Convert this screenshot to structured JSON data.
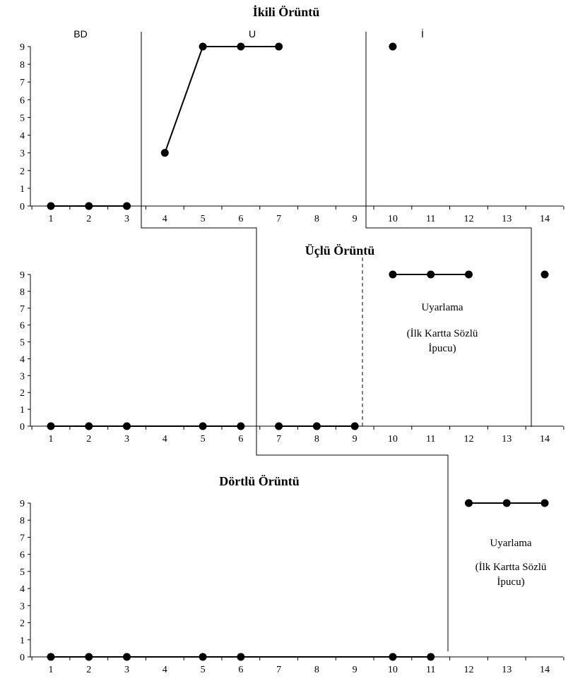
{
  "chart_data": [
    {
      "type": "line",
      "title": "İkili Örüntü",
      "x_ticks": [
        "1",
        "2",
        "3",
        "4",
        "5",
        "6",
        "7",
        "8",
        "9",
        "10",
        "11",
        "12",
        "13",
        "14"
      ],
      "y_ticks": [
        "0",
        "1",
        "2",
        "3",
        "4",
        "5",
        "6",
        "7",
        "8",
        "9"
      ],
      "ylim": [
        0,
        9
      ],
      "xlim": [
        1,
        14
      ],
      "grid": false,
      "phase_labels": [
        "BD",
        "U",
        "İ"
      ],
      "segments": [
        {
          "phase": "BD",
          "points": [
            [
              1,
              0
            ],
            [
              2,
              0
            ],
            [
              3,
              0
            ]
          ]
        },
        {
          "phase": "U",
          "points": [
            [
              4,
              3
            ],
            [
              5,
              9
            ],
            [
              6,
              9
            ],
            [
              7,
              9
            ]
          ]
        },
        {
          "phase": "İ",
          "points": [
            [
              10,
              9
            ]
          ]
        }
      ]
    },
    {
      "type": "line",
      "title": "Üçlü Örüntü",
      "x_ticks": [
        "1",
        "2",
        "3",
        "4",
        "5",
        "6",
        "7",
        "8",
        "9",
        "10",
        "11",
        "12",
        "13",
        "14"
      ],
      "y_ticks": [
        "0",
        "1",
        "2",
        "3",
        "4",
        "5",
        "6",
        "7",
        "8",
        "9"
      ],
      "ylim": [
        0,
        9
      ],
      "xlim": [
        1,
        14
      ],
      "grid": false,
      "annotation": [
        "Uyarlama",
        "(İlk Kartta Sözlü",
        "İpucu)"
      ],
      "segments": [
        {
          "phase": "BD",
          "points": [
            [
              1,
              0
            ],
            [
              2,
              0
            ],
            [
              3,
              0
            ],
            [
              5,
              0
            ],
            [
              6,
              0
            ]
          ]
        },
        {
          "phase": "U",
          "points": [
            [
              7,
              0
            ],
            [
              8,
              0
            ],
            [
              9,
              0
            ]
          ]
        },
        {
          "phase": "Uyarlama",
          "points": [
            [
              10,
              9
            ],
            [
              11,
              9
            ],
            [
              12,
              9
            ]
          ]
        },
        {
          "phase": "İ",
          "points": [
            [
              14,
              9
            ]
          ]
        }
      ]
    },
    {
      "type": "line",
      "title": "Dörtlü Örüntü",
      "x_ticks": [
        "1",
        "2",
        "3",
        "4",
        "5",
        "6",
        "7",
        "8",
        "9",
        "10",
        "11",
        "12",
        "13",
        "14"
      ],
      "y_ticks": [
        "0",
        "1",
        "2",
        "3",
        "4",
        "5",
        "6",
        "7",
        "8",
        "9"
      ],
      "ylim": [
        0,
        9
      ],
      "xlim": [
        1,
        14
      ],
      "grid": false,
      "annotation": [
        "Uyarlama",
        "(İlk Kartta Sözlü",
        "İpucu)"
      ],
      "segments": [
        {
          "phase": "BD",
          "points": [
            [
              1,
              0
            ],
            [
              2,
              0
            ],
            [
              3,
              0
            ],
            [
              5,
              0
            ],
            [
              6,
              0
            ],
            [
              10,
              0
            ],
            [
              11,
              0
            ]
          ]
        },
        {
          "phase": "Uyarlama",
          "points": [
            [
              12,
              9
            ],
            [
              13,
              9
            ],
            [
              14,
              9
            ]
          ]
        }
      ]
    }
  ]
}
